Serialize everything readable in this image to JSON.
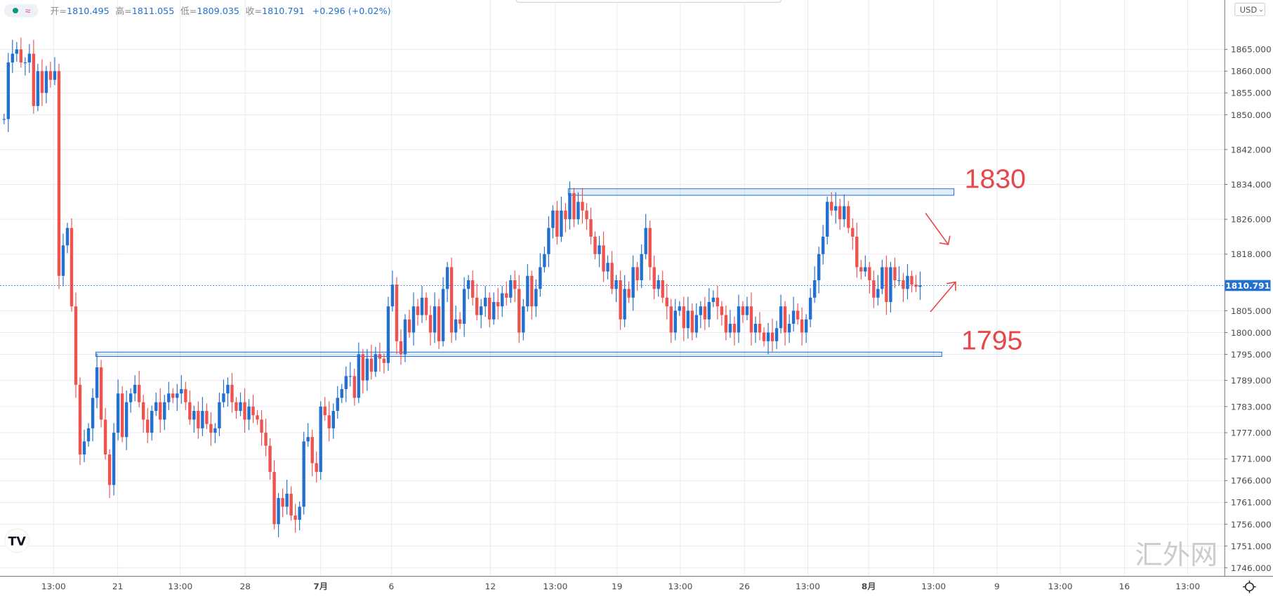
{
  "legend": {
    "open_label": "开=",
    "open": "1810.495",
    "high_label": "高=",
    "high": "1811.055",
    "low_label": "低=",
    "low": "1809.035",
    "close_label": "收=",
    "close": "1810.791",
    "change": "+0.296 (+0.02%)"
  },
  "currency_button": "USD",
  "current_price_label": "1810.791",
  "watermark": "汇外网",
  "colors": {
    "up": "#2270d0",
    "down": "#ef5350",
    "annotation": "#e8474a",
    "zone": "#2270d0",
    "grid": "#e6e9ef"
  },
  "icons": {
    "status_dot": "teal-dot-icon",
    "indicator": "wave-icon",
    "logo": "tradingview-logo-icon",
    "settings": "gear-icon"
  },
  "chart_data": {
    "type": "candlestick",
    "interval": "4H",
    "ylim": [
      1744,
      1872
    ],
    "y_ticks": [
      "1865.000",
      "1860.000",
      "1855.000",
      "1850.000",
      "1842.000",
      "1834.000",
      "1826.000",
      "1818.000",
      "1805.000",
      "1800.000",
      "1795.000",
      "1789.000",
      "1783.000",
      "1777.000",
      "1771.000",
      "1766.000",
      "1761.000",
      "1756.000",
      "1751.000",
      "1746.000"
    ],
    "x_ticks": [
      "13:00",
      "21",
      "13:00",
      "28",
      "7月",
      "6",
      "12",
      "13:00",
      "19",
      "13:00",
      "26",
      "13:00",
      "8月",
      "13:00",
      "9",
      "13:00",
      "16",
      "13:00"
    ],
    "first_open": 1849,
    "closes": [
      1849,
      1862,
      1864,
      1865,
      1862,
      1862,
      1864,
      1852,
      1860,
      1855,
      1860,
      1858,
      1860,
      1813,
      1820,
      1824,
      1806,
      1788,
      1772,
      1775,
      1778,
      1785,
      1792,
      1780,
      1772,
      1765,
      1777,
      1786,
      1776,
      1784,
      1786,
      1788,
      1784,
      1780,
      1777,
      1782,
      1784,
      1780,
      1784,
      1786,
      1785,
      1786,
      1787,
      1784,
      1780,
      1782,
      1778,
      1782,
      1779,
      1777,
      1778,
      1784,
      1786,
      1788,
      1784,
      1782,
      1784,
      1780,
      1783,
      1781,
      1780,
      1777,
      1774,
      1768,
      1756,
      1762,
      1760,
      1763,
      1758,
      1757,
      1760,
      1775,
      1776,
      1770,
      1768,
      1783,
      1781,
      1778,
      1782,
      1785,
      1787,
      1790,
      1790,
      1785,
      1795,
      1789,
      1794,
      1791,
      1795,
      1794,
      1793,
      1806,
      1811,
      1798,
      1795,
      1803,
      1800,
      1806,
      1804,
      1808,
      1804,
      1800,
      1806,
      1798,
      1810,
      1815,
      1800,
      1803,
      1802,
      1810,
      1812,
      1808,
      1804,
      1806,
      1808,
      1803,
      1807,
      1806,
      1809,
      1808,
      1812,
      1810,
      1800,
      1806,
      1813,
      1806,
      1810,
      1815,
      1818,
      1824,
      1828,
      1822,
      1828,
      1826,
      1832,
      1826,
      1830,
      1828,
      1826,
      1822,
      1818,
      1820,
      1814,
      1816,
      1810,
      1812,
      1803,
      1810,
      1808,
      1815,
      1812,
      1818,
      1824,
      1815,
      1810,
      1812,
      1808,
      1806,
      1800,
      1805,
      1806,
      1801,
      1805,
      1800,
      1804,
      1806,
      1803,
      1807,
      1808,
      1806,
      1804,
      1800,
      1802,
      1800,
      1806,
      1804,
      1806,
      1800,
      1802,
      1800,
      1798,
      1800,
      1798,
      1801,
      1806,
      1800,
      1802,
      1805,
      1803,
      1800,
      1803,
      1808,
      1812,
      1818,
      1822,
      1830,
      1828,
      1829,
      1826,
      1829,
      1824,
      1822,
      1815,
      1814,
      1815,
      1812,
      1808,
      1810,
      1815,
      1807,
      1815,
      1812,
      1812,
      1810,
      1813,
      1811,
      1810.495,
      1810.791
    ],
    "current_price": 1810.791,
    "zones": [
      {
        "label": "1830",
        "low": 1831.5,
        "high": 1833
      },
      {
        "label": "1795",
        "low": 1794.5,
        "high": 1795.5
      }
    ],
    "annotations": [
      {
        "type": "arrow",
        "direction": "down-right",
        "text": ""
      },
      {
        "type": "arrow",
        "direction": "up-right",
        "text": ""
      }
    ],
    "grid": true
  }
}
